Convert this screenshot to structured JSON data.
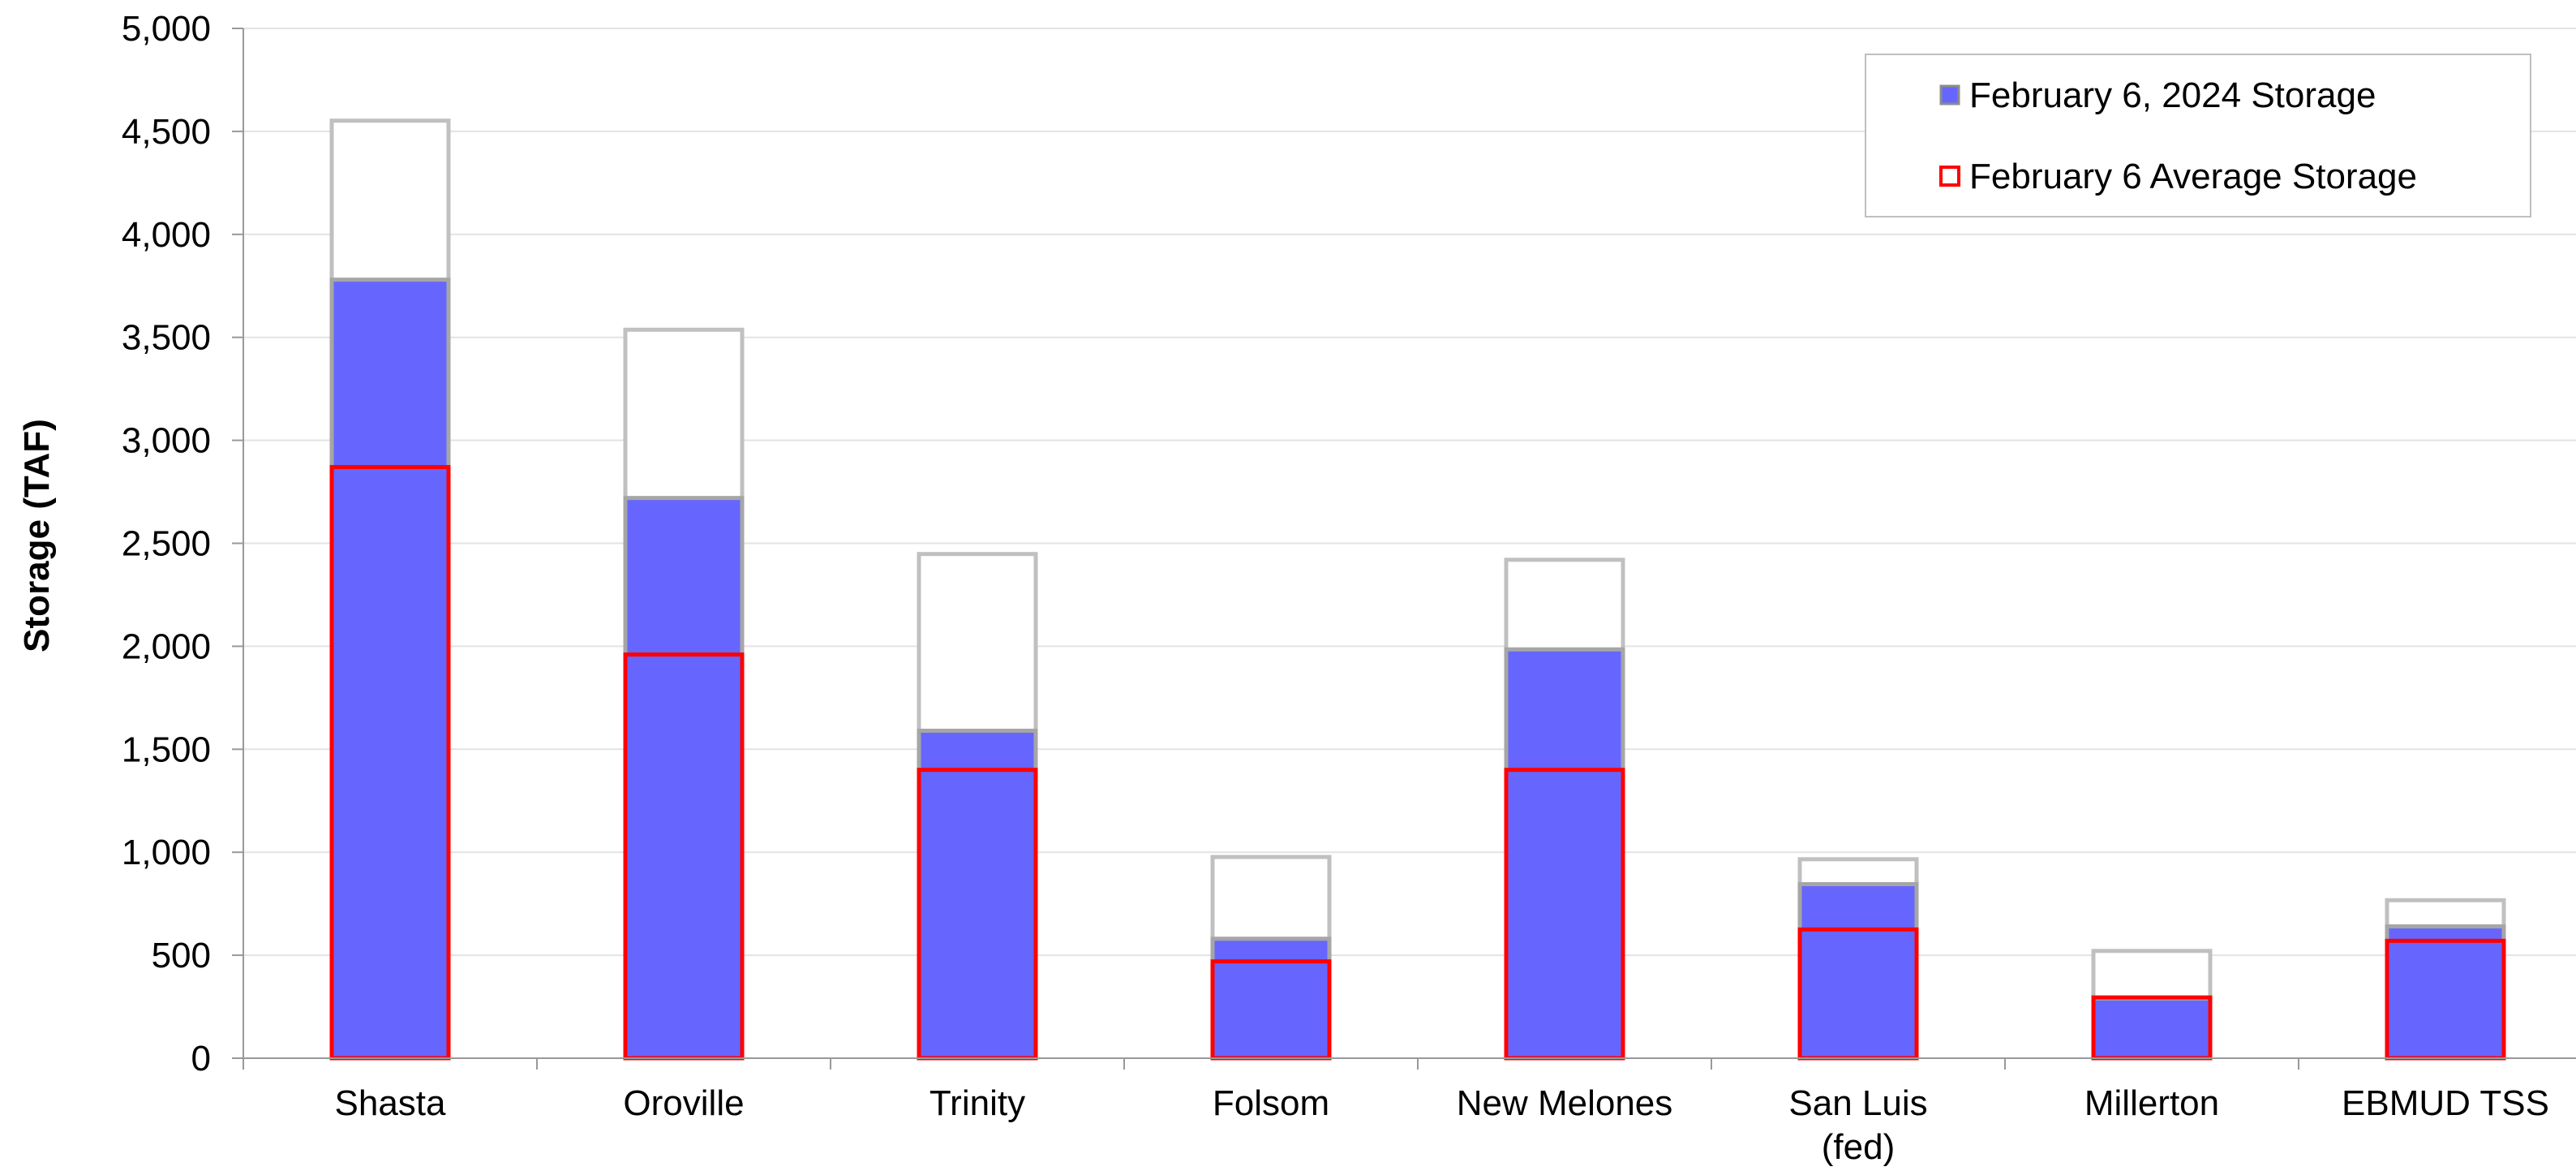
{
  "chart_data": {
    "type": "bar",
    "categories": [
      "Shasta",
      "Oroville",
      "Trinity",
      "Folsom",
      "New Melones",
      "San Luis (fed)",
      "Millerton",
      "EBMUD TSS"
    ],
    "category_label_lines": [
      [
        "Shasta"
      ],
      [
        "Oroville"
      ],
      [
        "Trinity"
      ],
      [
        "Folsom"
      ],
      [
        "New Melones"
      ],
      [
        "San Luis",
        "(fed)"
      ],
      [
        "Millerton"
      ],
      [
        "EBMUD TSS"
      ]
    ],
    "capacity": [
      4552,
      3537,
      2448,
      977,
      2420,
      966,
      521,
      767
    ],
    "series": [
      {
        "name": "February 6, 2024 Storage",
        "values": [
          3780,
          2720,
          1590,
          580,
          1985,
          845,
          290,
          640
        ],
        "color": "#6666ff"
      },
      {
        "name": "February 6 Average Storage",
        "values": [
          2870,
          1960,
          1400,
          470,
          1400,
          625,
          295,
          570
        ],
        "color": "#ff0000"
      }
    ],
    "ylabel": "Storage (TAF)",
    "xlabel": "",
    "ylim": [
      0,
      5000
    ],
    "yticks": [
      0,
      500,
      1000,
      1500,
      2000,
      2500,
      3000,
      3500,
      4000,
      4500,
      5000
    ],
    "ytick_labels": [
      "0",
      "500",
      "1,000",
      "1,500",
      "2,000",
      "2,500",
      "3,000",
      "3,500",
      "4,000",
      "4,500",
      "5,000"
    ],
    "grid": true,
    "legend_position": "top-right",
    "capacity_outline_color": "#c0c0c0"
  }
}
